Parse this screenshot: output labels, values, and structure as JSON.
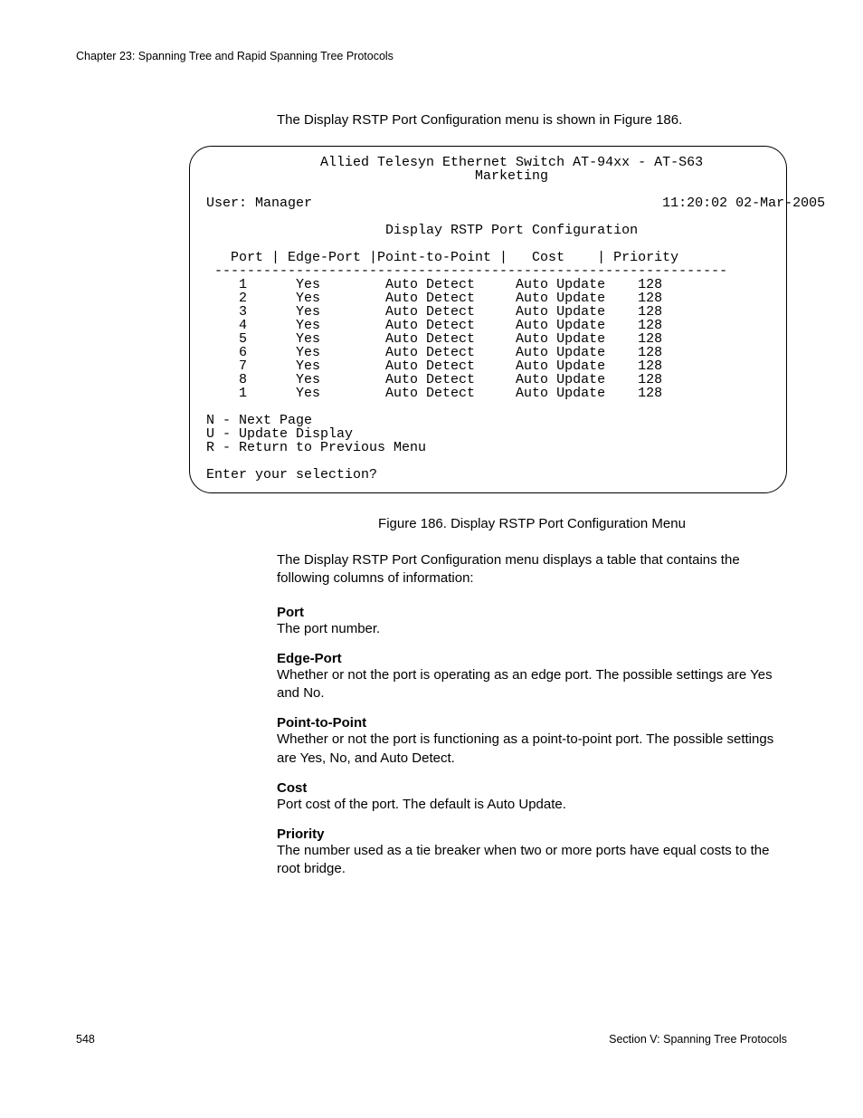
{
  "header": {
    "chapter": "Chapter 23: Spanning Tree and Rapid Spanning Tree Protocols"
  },
  "intro": "The Display RSTP Port Configuration menu is shown in Figure 186.",
  "terminal": {
    "title1": "Allied Telesyn Ethernet Switch AT-94xx - AT-S63",
    "title2": "Marketing",
    "user": "User: Manager",
    "timestamp": "11:20:02 02-Mar-2005",
    "menu_title": "Display RSTP Port Configuration",
    "columns": {
      "c1": "Port",
      "c2": "Edge-Port",
      "c3": "Point-to-Point",
      "c4": "Cost",
      "c5": "Priority"
    },
    "rows": [
      {
        "port": "1",
        "edge": "Yes",
        "ptp": "Auto Detect",
        "cost": "Auto Update",
        "pri": "128"
      },
      {
        "port": "2",
        "edge": "Yes",
        "ptp": "Auto Detect",
        "cost": "Auto Update",
        "pri": "128"
      },
      {
        "port": "3",
        "edge": "Yes",
        "ptp": "Auto Detect",
        "cost": "Auto Update",
        "pri": "128"
      },
      {
        "port": "4",
        "edge": "Yes",
        "ptp": "Auto Detect",
        "cost": "Auto Update",
        "pri": "128"
      },
      {
        "port": "5",
        "edge": "Yes",
        "ptp": "Auto Detect",
        "cost": "Auto Update",
        "pri": "128"
      },
      {
        "port": "6",
        "edge": "Yes",
        "ptp": "Auto Detect",
        "cost": "Auto Update",
        "pri": "128"
      },
      {
        "port": "7",
        "edge": "Yes",
        "ptp": "Auto Detect",
        "cost": "Auto Update",
        "pri": "128"
      },
      {
        "port": "8",
        "edge": "Yes",
        "ptp": "Auto Detect",
        "cost": "Auto Update",
        "pri": "128"
      },
      {
        "port": "1",
        "edge": "Yes",
        "ptp": "Auto Detect",
        "cost": "Auto Update",
        "pri": "128"
      }
    ],
    "opt_n": "N - Next Page",
    "opt_u": "U - Update Display",
    "opt_r": "R - Return to Previous Menu",
    "prompt": "Enter your selection?"
  },
  "caption": "Figure 186. Display RSTP Port Configuration Menu",
  "body1": "The Display RSTP Port Configuration menu displays a table that contains the following columns of information:",
  "defs": {
    "port_t": "Port",
    "port_d": "The port number.",
    "edge_t": "Edge-Port",
    "edge_d": "Whether or not the port is operating as an edge port. The possible settings are Yes and No.",
    "ptp_t": "Point-to-Point",
    "ptp_d": "Whether or not the port is functioning as a point-to-point port. The possible settings are Yes, No, and Auto Detect.",
    "cost_t": "Cost",
    "cost_d": "Port cost of the port. The default is Auto Update.",
    "pri_t": "Priority",
    "pri_d": "The number used as a tie breaker when two or more ports have equal costs to the root bridge."
  },
  "footer": {
    "pagenum": "548",
    "section": "Section V: Spanning Tree Protocols"
  }
}
